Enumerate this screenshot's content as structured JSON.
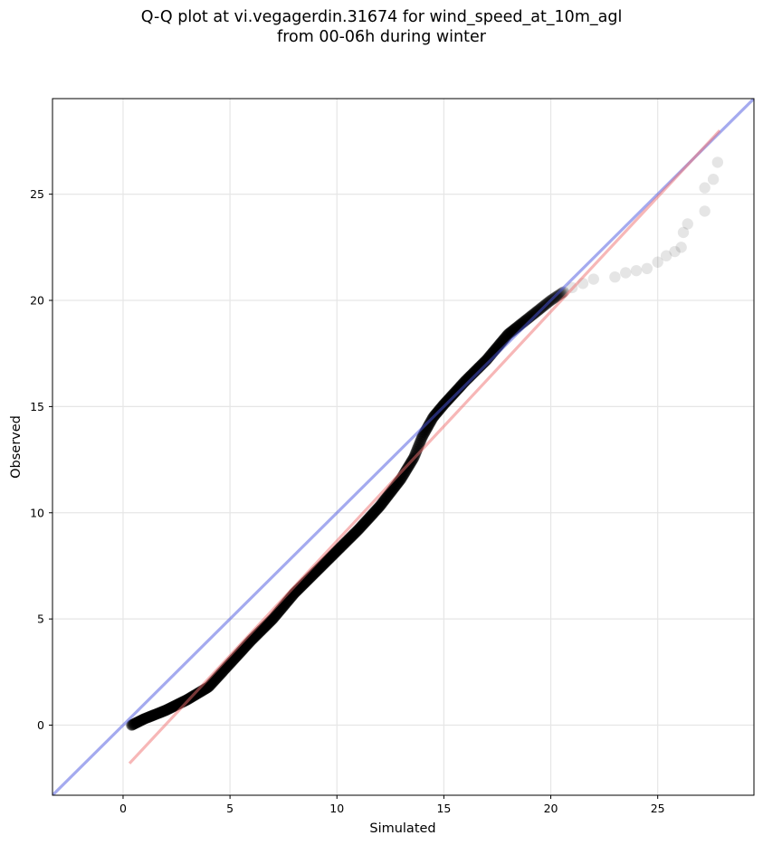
{
  "title": {
    "line1": "Q-Q plot at vi.vegagerdin.31674 for wind_speed_at_10m_agl",
    "line2": "from 00-06h during winter"
  },
  "chart_data": {
    "type": "scatter",
    "title": "Q-Q plot at vi.vegagerdin.31674 for wind_speed_at_10m_agl\nfrom 00-06h during winter",
    "xlabel": "Simulated",
    "ylabel": "Observed",
    "xlim": [
      -3.3,
      29.5
    ],
    "ylim": [
      -3.3,
      29.5
    ],
    "x_ticks": [
      0,
      5,
      10,
      15,
      20,
      25
    ],
    "y_ticks": [
      0,
      5,
      10,
      15,
      20,
      25
    ],
    "grid": true,
    "colors": {
      "points": "#000000",
      "identity_line": "#4a55e0",
      "fit_line": "#f07070",
      "grid": "#e6e6e6"
    },
    "quantile_curve_anchors": [
      [
        0.4,
        0.0
      ],
      [
        1.0,
        0.3
      ],
      [
        2.0,
        0.7
      ],
      [
        3.0,
        1.2
      ],
      [
        4.0,
        1.8
      ],
      [
        5.0,
        2.9
      ],
      [
        6.0,
        4.0
      ],
      [
        7.0,
        5.0
      ],
      [
        8.0,
        6.2
      ],
      [
        9.0,
        7.2
      ],
      [
        10.0,
        8.2
      ],
      [
        11.0,
        9.2
      ],
      [
        12.0,
        10.3
      ],
      [
        13.0,
        11.6
      ],
      [
        13.6,
        12.6
      ],
      [
        14.0,
        13.6
      ],
      [
        14.5,
        14.5
      ],
      [
        15.0,
        15.1
      ],
      [
        16.0,
        16.2
      ],
      [
        17.0,
        17.2
      ],
      [
        18.0,
        18.4
      ],
      [
        19.0,
        19.2
      ],
      [
        20.0,
        20.0
      ],
      [
        20.6,
        20.4
      ]
    ],
    "tail_points": [
      [
        21.0,
        20.6
      ],
      [
        21.5,
        20.8
      ],
      [
        22.0,
        21.0
      ],
      [
        23.0,
        21.1
      ],
      [
        23.5,
        21.3
      ],
      [
        24.0,
        21.4
      ],
      [
        24.5,
        21.5
      ],
      [
        25.0,
        21.8
      ],
      [
        25.4,
        22.1
      ],
      [
        25.8,
        22.3
      ],
      [
        26.1,
        22.5
      ],
      [
        26.2,
        23.2
      ],
      [
        26.4,
        23.6
      ],
      [
        27.2,
        24.2
      ],
      [
        27.2,
        25.3
      ],
      [
        27.6,
        25.7
      ],
      [
        27.8,
        26.5
      ]
    ],
    "series": [
      {
        "values": [
          [
            -3.3,
            -3.3
          ],
          [
            29.5,
            29.5
          ]
        ]
      },
      {
        "values": [
          [
            0.3,
            -1.8
          ],
          [
            27.9,
            28.0
          ]
        ]
      }
    ]
  }
}
